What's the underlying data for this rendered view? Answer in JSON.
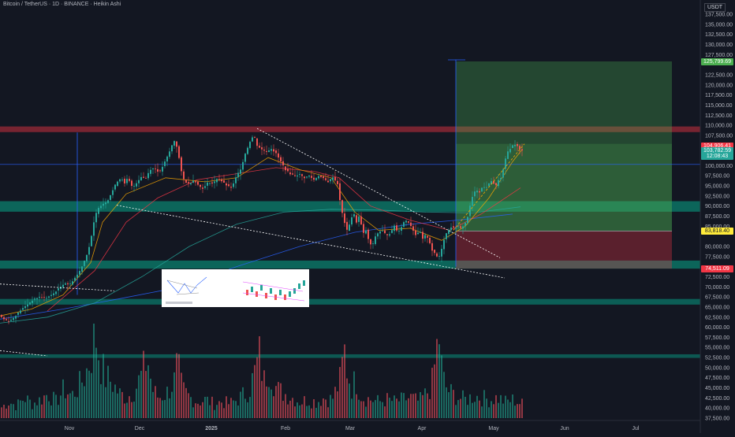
{
  "header": {
    "title": "Bitcoin / TetherUS · 1D · BINANCE · Heikin Ashi",
    "currency": "USDT"
  },
  "price_tags": [
    {
      "label": "125,799.69",
      "price": 125800,
      "color": "#4caf50"
    },
    {
      "label": "104,906.41",
      "price": 104906,
      "color": "#f23645"
    },
    {
      "label": "103,782.59",
      "price": 103600,
      "color": "#26a69a"
    },
    {
      "label": "12:08:43",
      "price": 102400,
      "color": "#26a69a"
    },
    {
      "label": "83,818.40",
      "price": 83818,
      "color": "#ffeb3b"
    },
    {
      "label": "74,511.09",
      "price": 74511,
      "color": "#f23645"
    }
  ],
  "chart_data": {
    "type": "candlestick",
    "y_ticks": [
      "137,500.00",
      "135,000.00",
      "132,500.00",
      "130,000.00",
      "127,500.00",
      "122,500.00",
      "120,000.00",
      "117,500.00",
      "115,000.00",
      "112,500.00",
      "110,000.00",
      "107,500.00",
      "100,000.00",
      "97,500.00",
      "95,000.00",
      "92,500.00",
      "90,000.00",
      "87,500.00",
      "85,000.00",
      "80,000.00",
      "77,500.00",
      "72,500.00",
      "70,000.00",
      "67,500.00",
      "65,000.00",
      "62,500.00",
      "60,000.00",
      "57,500.00",
      "55,000.00",
      "52,500.00",
      "50,000.00",
      "47,500.00",
      "45,000.00",
      "42,500.00",
      "40,000.00",
      "37,500.00"
    ],
    "x_ticks": [
      {
        "label": "Nov",
        "bold": false
      },
      {
        "label": "Dec",
        "bold": false
      },
      {
        "label": "2025",
        "bold": true
      },
      {
        "label": "Feb",
        "bold": false
      },
      {
        "label": "Mar",
        "bold": false
      },
      {
        "label": "Apr",
        "bold": false
      },
      {
        "label": "May",
        "bold": false
      },
      {
        "label": "Jun",
        "bold": false
      },
      {
        "label": "Jul",
        "bold": false
      }
    ],
    "price_path": [
      [
        0,
        63200
      ],
      [
        8,
        61800
      ],
      [
        14,
        61500
      ],
      [
        20,
        62500
      ],
      [
        28,
        64200
      ],
      [
        36,
        65500
      ],
      [
        44,
        66800
      ],
      [
        52,
        67500
      ],
      [
        60,
        67200
      ],
      [
        68,
        68000
      ],
      [
        76,
        69500
      ],
      [
        84,
        71000
      ],
      [
        90,
        70500
      ],
      [
        96,
        72000
      ],
      [
        102,
        73500
      ],
      [
        108,
        76000
      ],
      [
        114,
        79000
      ],
      [
        118,
        82500
      ],
      [
        122,
        87000
      ],
      [
        126,
        89500
      ],
      [
        132,
        90500
      ],
      [
        138,
        91200
      ],
      [
        144,
        93500
      ],
      [
        150,
        96000
      ],
      [
        156,
        97000
      ],
      [
        160,
        95500
      ],
      [
        164,
        97000
      ],
      [
        170,
        94500
      ],
      [
        176,
        96000
      ],
      [
        182,
        97500
      ],
      [
        186,
        96500
      ],
      [
        192,
        99000
      ],
      [
        198,
        99500
      ],
      [
        204,
        98200
      ],
      [
        210,
        100500
      ],
      [
        216,
        103000
      ],
      [
        220,
        105000
      ],
      [
        224,
        106500
      ],
      [
        228,
        103000
      ],
      [
        232,
        98500
      ],
      [
        236,
        96000
      ],
      [
        242,
        95500
      ],
      [
        248,
        96500
      ],
      [
        254,
        95000
      ],
      [
        260,
        94300
      ],
      [
        266,
        96000
      ],
      [
        272,
        95500
      ],
      [
        278,
        97000
      ],
      [
        284,
        96000
      ],
      [
        290,
        95000
      ],
      [
        296,
        94500
      ],
      [
        302,
        97500
      ],
      [
        308,
        99500
      ],
      [
        312,
        102500
      ],
      [
        316,
        104500
      ],
      [
        320,
        106500
      ],
      [
        324,
        107500
      ],
      [
        328,
        105000
      ],
      [
        334,
        104000
      ],
      [
        340,
        103500
      ],
      [
        346,
        104200
      ],
      [
        352,
        103000
      ],
      [
        358,
        101000
      ],
      [
        364,
        99000
      ],
      [
        370,
        98000
      ],
      [
        376,
        97500
      ],
      [
        382,
        97800
      ],
      [
        388,
        97000
      ],
      [
        394,
        97500
      ],
      [
        400,
        96500
      ],
      [
        406,
        97500
      ],
      [
        412,
        96800
      ],
      [
        418,
        96000
      ],
      [
        424,
        97200
      ],
      [
        430,
        95500
      ],
      [
        434,
        90000
      ],
      [
        438,
        86500
      ],
      [
        442,
        84000
      ],
      [
        446,
        86000
      ],
      [
        450,
        88500
      ],
      [
        454,
        86000
      ],
      [
        458,
        87800
      ],
      [
        462,
        83000
      ],
      [
        466,
        84000
      ],
      [
        470,
        81000
      ],
      [
        474,
        80000
      ],
      [
        478,
        82500
      ],
      [
        482,
        83500
      ],
      [
        486,
        84000
      ],
      [
        490,
        83200
      ],
      [
        494,
        82800
      ],
      [
        498,
        83500
      ],
      [
        502,
        85200
      ],
      [
        506,
        83500
      ],
      [
        510,
        84500
      ],
      [
        514,
        86000
      ],
      [
        518,
        86500
      ],
      [
        522,
        85500
      ],
      [
        526,
        84000
      ],
      [
        530,
        82500
      ],
      [
        534,
        84000
      ],
      [
        538,
        81800
      ],
      [
        542,
        83000
      ],
      [
        546,
        81500
      ],
      [
        550,
        79000
      ],
      [
        554,
        78000
      ],
      [
        558,
        77000
      ],
      [
        562,
        79500
      ],
      [
        566,
        82500
      ],
      [
        570,
        84000
      ],
      [
        574,
        84800
      ],
      [
        578,
        84500
      ],
      [
        582,
        85000
      ],
      [
        586,
        84500
      ],
      [
        590,
        85200
      ],
      [
        594,
        86500
      ],
      [
        598,
        90000
      ],
      [
        602,
        93000
      ],
      [
        606,
        94000
      ],
      [
        610,
        93500
      ],
      [
        614,
        94800
      ],
      [
        618,
        94500
      ],
      [
        622,
        95500
      ],
      [
        626,
        96500
      ],
      [
        630,
        94600
      ],
      [
        634,
        96500
      ],
      [
        638,
        97000
      ],
      [
        642,
        101000
      ],
      [
        646,
        103500
      ],
      [
        650,
        104500
      ],
      [
        654,
        105400
      ],
      [
        658,
        104800
      ],
      [
        662,
        103700
      ]
    ],
    "volume_path": [
      [
        0,
        5
      ],
      [
        10,
        8
      ],
      [
        20,
        6
      ],
      [
        30,
        10
      ],
      [
        40,
        7
      ],
      [
        50,
        9
      ],
      [
        60,
        12
      ],
      [
        70,
        8
      ],
      [
        80,
        14
      ],
      [
        90,
        11
      ],
      [
        100,
        16
      ],
      [
        108,
        22
      ],
      [
        114,
        30
      ],
      [
        120,
        42
      ],
      [
        126,
        28
      ],
      [
        132,
        20
      ],
      [
        140,
        18
      ],
      [
        150,
        12
      ],
      [
        160,
        10
      ],
      [
        170,
        14
      ],
      [
        180,
        22
      ],
      [
        186,
        30
      ],
      [
        192,
        14
      ],
      [
        200,
        10
      ],
      [
        210,
        12
      ],
      [
        220,
        18
      ],
      [
        224,
        26
      ],
      [
        230,
        14
      ],
      [
        240,
        10
      ],
      [
        250,
        8
      ],
      [
        260,
        9
      ],
      [
        270,
        7
      ],
      [
        280,
        8
      ],
      [
        290,
        7
      ],
      [
        300,
        9
      ],
      [
        310,
        12
      ],
      [
        316,
        15
      ],
      [
        322,
        22
      ],
      [
        328,
        30
      ],
      [
        334,
        18
      ],
      [
        340,
        26
      ],
      [
        350,
        14
      ],
      [
        360,
        12
      ],
      [
        370,
        10
      ],
      [
        380,
        8
      ],
      [
        390,
        9
      ],
      [
        400,
        8
      ],
      [
        410,
        10
      ],
      [
        420,
        9
      ],
      [
        430,
        18
      ],
      [
        436,
        32
      ],
      [
        440,
        22
      ],
      [
        446,
        14
      ],
      [
        450,
        20
      ],
      [
        456,
        12
      ],
      [
        460,
        10
      ],
      [
        470,
        9
      ],
      [
        480,
        8
      ],
      [
        490,
        9
      ],
      [
        500,
        8
      ],
      [
        510,
        9
      ],
      [
        520,
        10
      ],
      [
        530,
        8
      ],
      [
        540,
        12
      ],
      [
        548,
        18
      ],
      [
        552,
        32
      ],
      [
        556,
        40
      ],
      [
        560,
        20
      ],
      [
        566,
        14
      ],
      [
        572,
        12
      ],
      [
        580,
        10
      ],
      [
        590,
        9
      ],
      [
        600,
        11
      ],
      [
        610,
        10
      ],
      [
        620,
        9
      ],
      [
        630,
        10
      ],
      [
        640,
        8
      ],
      [
        650,
        9
      ],
      [
        660,
        7
      ]
    ],
    "moving_averages": [
      {
        "color": "#2962ff",
        "points": [
          [
            0,
            62000
          ],
          [
            80,
            64500
          ],
          [
            150,
            67000
          ],
          [
            230,
            70000
          ],
          [
            300,
            75000
          ],
          [
            380,
            80000
          ],
          [
            450,
            83500
          ],
          [
            520,
            85500
          ],
          [
            580,
            86500
          ],
          [
            650,
            88000
          ]
        ]
      },
      {
        "color": "#26a69a",
        "points": [
          [
            0,
            61000
          ],
          [
            60,
            62500
          ],
          [
            120,
            66000
          ],
          [
            180,
            72500
          ],
          [
            240,
            80000
          ],
          [
            300,
            85500
          ],
          [
            360,
            88500
          ],
          [
            420,
            89200
          ],
          [
            480,
            89000
          ],
          [
            540,
            88500
          ],
          [
            600,
            88300
          ],
          [
            660,
            89800
          ]
        ]
      },
      {
        "color": "#f23645",
        "points": [
          [
            60,
            64000
          ],
          [
            120,
            74000
          ],
          [
            160,
            86000
          ],
          [
            200,
            92000
          ],
          [
            250,
            96500
          ],
          [
            300,
            98000
          ],
          [
            350,
            99500
          ],
          [
            400,
            98500
          ],
          [
            430,
            97000
          ],
          [
            470,
            90000
          ],
          [
            520,
            86500
          ],
          [
            570,
            84000
          ],
          [
            610,
            88000
          ],
          [
            660,
            94500
          ]
        ]
      },
      {
        "color": "#f7a600",
        "points": [
          [
            0,
            62800
          ],
          [
            40,
            64500
          ],
          [
            80,
            68000
          ],
          [
            115,
            76000
          ],
          [
            130,
            86000
          ],
          [
            160,
            93000
          ],
          [
            210,
            97000
          ],
          [
            260,
            96000
          ],
          [
            300,
            97000
          ],
          [
            340,
            102000
          ],
          [
            380,
            99000
          ],
          [
            420,
            97000
          ],
          [
            450,
            88500
          ],
          [
            480,
            84000
          ],
          [
            520,
            84500
          ],
          [
            560,
            81500
          ],
          [
            590,
            85000
          ],
          [
            620,
            92000
          ],
          [
            650,
            101000
          ],
          [
            662,
            104000
          ]
        ]
      }
    ],
    "zones": [
      {
        "type": "supply",
        "y_low": 108300,
        "y_high": 109700,
        "x_start": 0,
        "x_end": 888,
        "color": "#f23645",
        "opacity": 0.45
      },
      {
        "type": "support",
        "y_low": 88600,
        "y_high": 91200,
        "x_start": 0,
        "x_end": 888,
        "color": "#089981",
        "opacity": 0.6
      },
      {
        "type": "support",
        "y_low": 74500,
        "y_high": 76500,
        "x_start": 0,
        "x_end": 888,
        "color": "#089981",
        "opacity": 0.6
      },
      {
        "type": "support",
        "y_low": 65600,
        "y_high": 67000,
        "x_start": 0,
        "x_end": 888,
        "color": "#089981",
        "opacity": 0.55
      },
      {
        "type": "support",
        "y_low": 52400,
        "y_high": 53300,
        "x_start": 0,
        "x_end": 888,
        "color": "#089981",
        "opacity": 0.5
      }
    ],
    "position": {
      "x_start": 578,
      "x_end": 852,
      "entry": 83818,
      "target": 125800,
      "stop": 74511
    },
    "trendlines": [
      {
        "points": [
          [
            326,
            109200
          ],
          [
            634,
            77200
          ]
        ],
        "color": "#ffffff",
        "dash": "2,2"
      },
      {
        "points": [
          [
            148,
            90200
          ],
          [
            640,
            72200
          ]
        ],
        "color": "#ffffff",
        "dash": "2,2"
      },
      {
        "points": [
          [
            0,
            70700
          ],
          [
            145,
            69000
          ]
        ],
        "color": "#ffffff",
        "dash": "2,2"
      },
      {
        "points": [
          [
            0,
            54200
          ],
          [
            60,
            52900
          ]
        ],
        "color": "#ffffff",
        "dash": "2,2"
      },
      {
        "points": [
          [
            575,
            84000
          ],
          [
            665,
            105400
          ]
        ],
        "color": "#f7a600",
        "dash": "3,2"
      }
    ],
    "horizontal_lines": [
      {
        "y": 100300,
        "x_start": 0,
        "x_end": 888,
        "color": "#2962ff"
      }
    ],
    "vertical_lines": [
      {
        "x": 98,
        "y_top": 108200,
        "y_bottom": 68000,
        "color": "#2962ff"
      },
      {
        "x": 578,
        "y_top": 126200,
        "y_bottom": 75000,
        "color": "#2962ff"
      }
    ]
  }
}
